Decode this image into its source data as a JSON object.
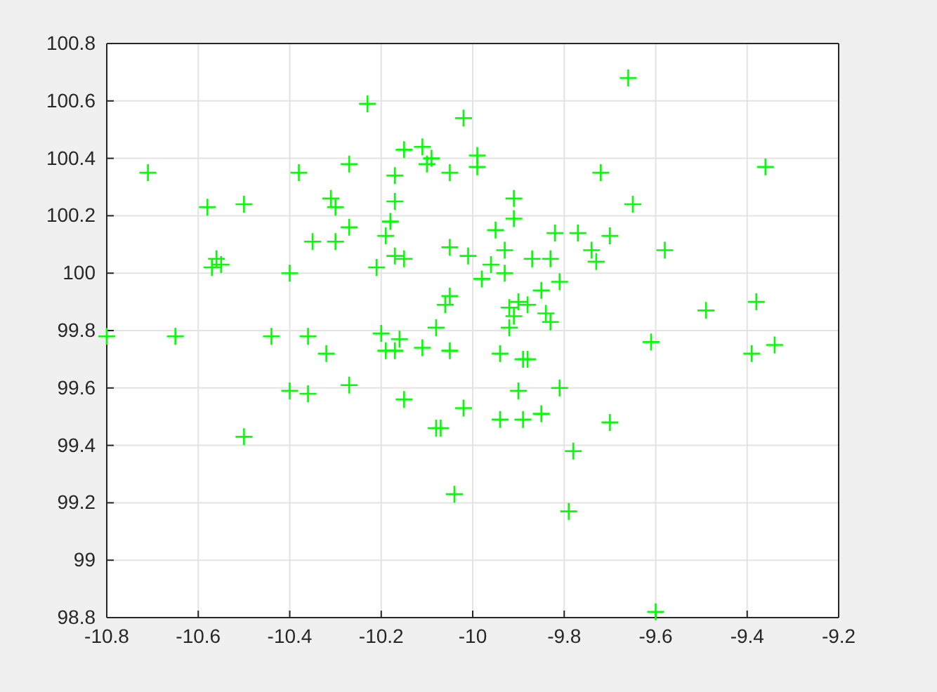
{
  "chart_data": {
    "type": "scatter",
    "xlim": [
      -10.8,
      -9.2
    ],
    "ylim": [
      98.8,
      100.8
    ],
    "xticks": [
      -10.8,
      -10.6,
      -10.4,
      -10.2,
      -10,
      -9.8,
      -9.6,
      -9.4,
      -9.2
    ],
    "yticks": [
      98.8,
      99,
      99.2,
      99.4,
      99.6,
      99.8,
      100,
      100.2,
      100.4,
      100.6,
      100.8
    ],
    "grid": true,
    "marker": "cross",
    "series": [
      {
        "color": "#00ff00",
        "x": [
          -10.8,
          -10.71,
          -10.65,
          -10.58,
          -10.57,
          -10.56,
          -10.55,
          -10.5,
          -10.5,
          -10.44,
          -10.4,
          -10.4,
          -10.38,
          -10.36,
          -10.36,
          -10.35,
          -10.31,
          -10.32,
          -10.3,
          -10.3,
          -10.27,
          -10.27,
          -10.27,
          -10.23,
          -10.21,
          -10.2,
          -10.19,
          -10.19,
          -10.18,
          -10.17,
          -10.17,
          -10.17,
          -10.16,
          -10.17,
          -10.15,
          -10.15,
          -10.15,
          -10.11,
          -10.11,
          -10.1,
          -10.09,
          -10.08,
          -10.08,
          -10.07,
          -10.06,
          -10.05,
          -10.05,
          -10.05,
          -10.05,
          -10.04,
          -10.02,
          -10.02,
          -10.01,
          -9.99,
          -9.99,
          -9.98,
          -9.96,
          -9.95,
          -9.94,
          -9.94,
          -9.93,
          -9.93,
          -9.92,
          -9.92,
          -9.91,
          -9.91,
          -9.91,
          -9.9,
          -9.9,
          -9.89,
          -9.89,
          -9.88,
          -9.88,
          -9.87,
          -9.85,
          -9.85,
          -9.84,
          -9.83,
          -9.83,
          -9.82,
          -9.81,
          -9.81,
          -9.78,
          -9.79,
          -9.77,
          -9.74,
          -9.73,
          -9.72,
          -9.7,
          -9.7,
          -9.66,
          -9.65,
          -9.61,
          -9.6,
          -9.58,
          -9.49,
          -9.39,
          -9.38,
          -9.36,
          -9.34
        ],
        "values": [
          99.78,
          100.35,
          99.78,
          100.23,
          100.02,
          100.05,
          100.03,
          100.24,
          99.43,
          99.78,
          100.0,
          99.59,
          100.35,
          99.78,
          99.58,
          100.11,
          100.26,
          99.72,
          100.23,
          100.11,
          100.38,
          100.16,
          99.61,
          100.59,
          100.02,
          99.79,
          99.73,
          100.13,
          100.18,
          100.34,
          100.25,
          99.73,
          99.77,
          100.06,
          100.05,
          100.43,
          99.56,
          100.44,
          99.74,
          100.38,
          100.4,
          99.81,
          99.46,
          99.46,
          99.89,
          100.35,
          99.92,
          99.73,
          100.09,
          99.23,
          100.54,
          99.53,
          100.06,
          100.41,
          100.37,
          99.98,
          100.03,
          100.15,
          99.72,
          99.49,
          100.08,
          100.0,
          99.88,
          99.81,
          100.26,
          100.19,
          99.85,
          99.9,
          99.59,
          99.7,
          99.49,
          99.7,
          99.89,
          100.05,
          99.94,
          99.51,
          99.86,
          99.83,
          100.05,
          100.14,
          99.97,
          99.6,
          99.38,
          99.17,
          100.14,
          100.08,
          100.04,
          100.35,
          100.13,
          99.48,
          100.68,
          100.24,
          99.76,
          98.82,
          100.08,
          99.87,
          99.72,
          99.9,
          100.37,
          99.75
        ]
      }
    ]
  }
}
